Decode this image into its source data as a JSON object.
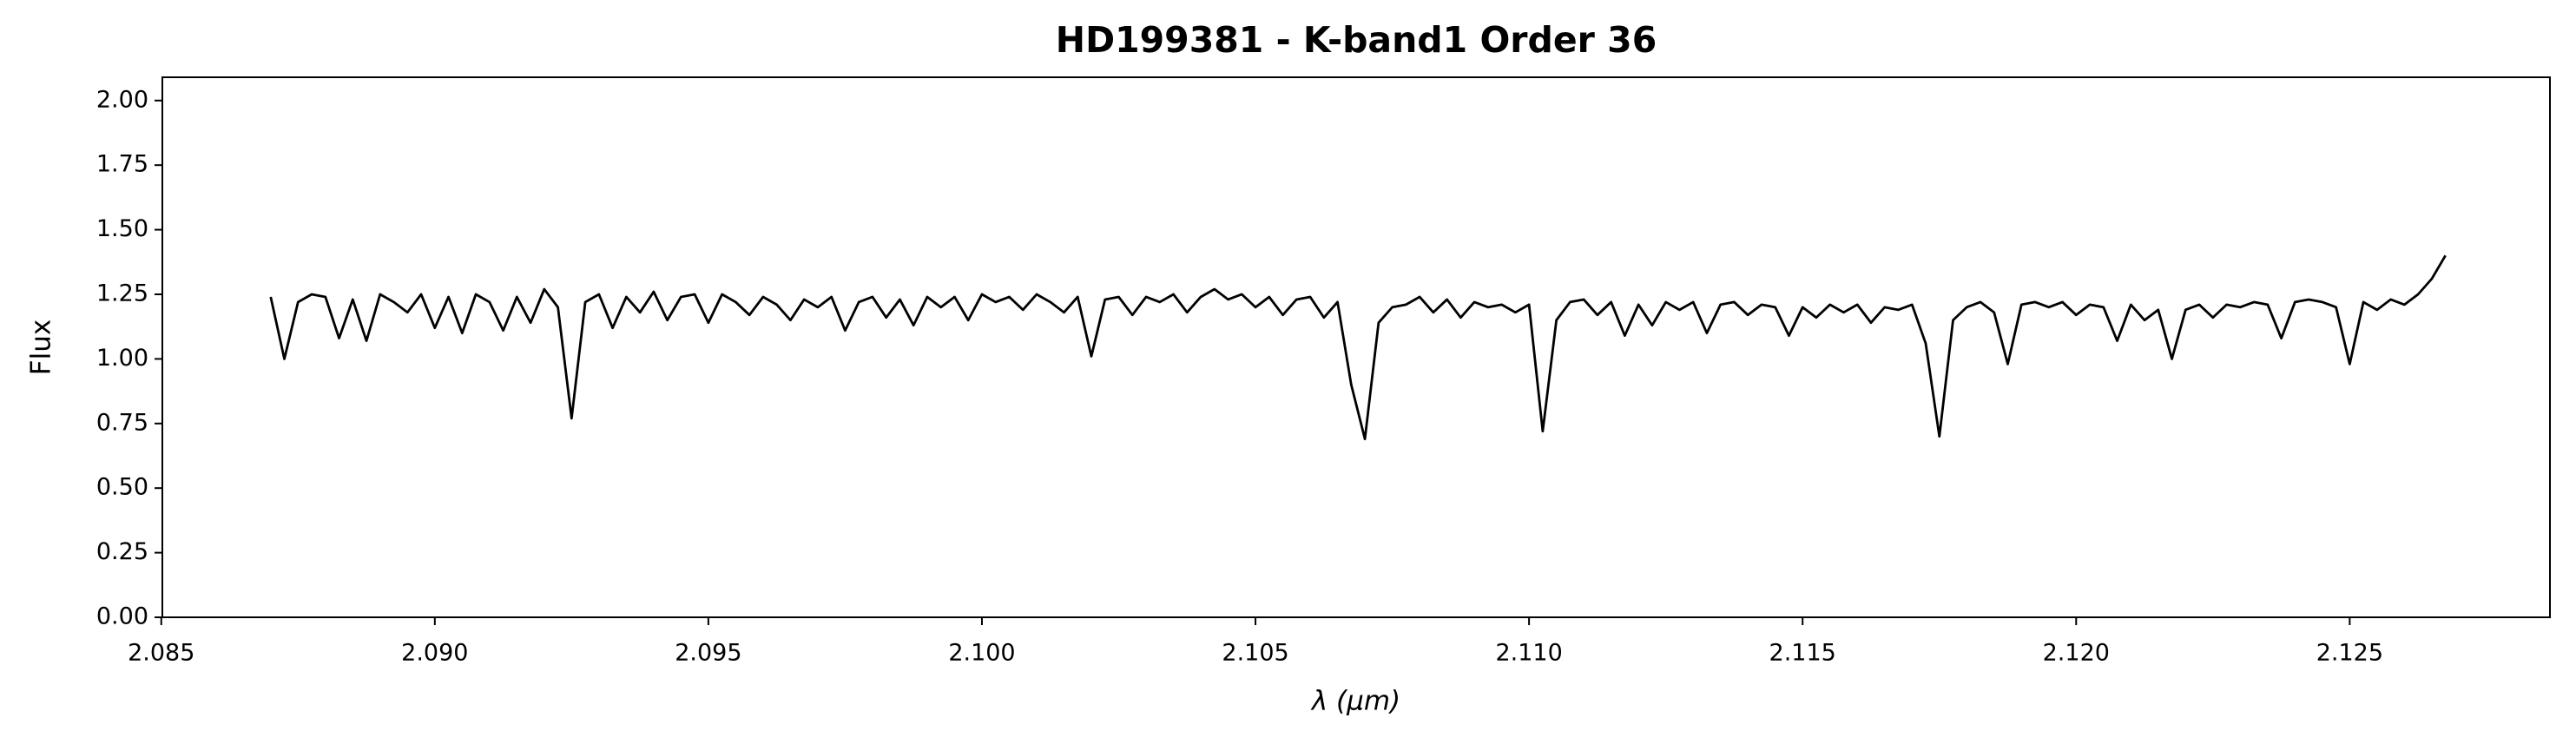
{
  "chart_data": {
    "type": "line",
    "title": "HD199381 - K-band1 Order 36",
    "xlabel": "λ (μm)",
    "ylabel": "Flux",
    "color": "#000000",
    "x": [
      2.087,
      2.08725,
      2.0875,
      2.08775,
      2.088,
      2.08825,
      2.0885,
      2.08875,
      2.089,
      2.08925,
      2.0895,
      2.08975,
      2.09,
      2.09025,
      2.0905,
      2.09075,
      2.091,
      2.09125,
      2.0915,
      2.09175,
      2.092,
      2.09225,
      2.0925,
      2.09275,
      2.093,
      2.09325,
      2.0935,
      2.09375,
      2.094,
      2.09425,
      2.0945,
      2.09475,
      2.095,
      2.09525,
      2.0955,
      2.09575,
      2.096,
      2.09625,
      2.0965,
      2.09675,
      2.097,
      2.09725,
      2.0975,
      2.09775,
      2.098,
      2.09825,
      2.0985,
      2.09875,
      2.099,
      2.09925,
      2.0995,
      2.09975,
      2.1,
      2.10025,
      2.1005,
      2.10075,
      2.101,
      2.10125,
      2.1015,
      2.10175,
      2.102,
      2.10225,
      2.1025,
      2.10275,
      2.103,
      2.10325,
      2.1035,
      2.10375,
      2.104,
      2.10425,
      2.1045,
      2.10475,
      2.105,
      2.10525,
      2.1055,
      2.10575,
      2.106,
      2.10625,
      2.1065,
      2.10675,
      2.107,
      2.10725,
      2.1075,
      2.10775,
      2.108,
      2.10825,
      2.1085,
      2.10875,
      2.109,
      2.10925,
      2.1095,
      2.10975,
      2.11,
      2.11025,
      2.1105,
      2.11075,
      2.111,
      2.11125,
      2.1115,
      2.11175,
      2.112,
      2.11225,
      2.1125,
      2.11275,
      2.113,
      2.11325,
      2.1135,
      2.11375,
      2.114,
      2.11425,
      2.1145,
      2.11475,
      2.115,
      2.11525,
      2.1155,
      2.11575,
      2.116,
      2.11625,
      2.1165,
      2.11675,
      2.117,
      2.11725,
      2.1175,
      2.11775,
      2.118,
      2.11825,
      2.1185,
      2.11875,
      2.119,
      2.11925,
      2.1195,
      2.11975,
      2.12,
      2.12025,
      2.1205,
      2.12075,
      2.121,
      2.12125,
      2.1215,
      2.12175,
      2.122,
      2.12225,
      2.1225,
      2.12275,
      2.123,
      2.12325,
      2.1235,
      2.12375,
      2.124,
      2.12425,
      2.1245,
      2.12475,
      2.125,
      2.12525,
      2.1255,
      2.12575,
      2.126,
      2.12625,
      2.1265,
      2.12675
    ],
    "values": [
      1.24,
      1.0,
      1.22,
      1.25,
      1.24,
      1.08,
      1.23,
      1.07,
      1.25,
      1.22,
      1.18,
      1.25,
      1.12,
      1.24,
      1.1,
      1.25,
      1.22,
      1.11,
      1.24,
      1.14,
      1.27,
      1.2,
      0.77,
      1.22,
      1.25,
      1.12,
      1.24,
      1.18,
      1.26,
      1.15,
      1.24,
      1.25,
      1.14,
      1.25,
      1.22,
      1.17,
      1.24,
      1.21,
      1.15,
      1.23,
      1.2,
      1.24,
      1.11,
      1.22,
      1.24,
      1.16,
      1.23,
      1.13,
      1.24,
      1.2,
      1.24,
      1.15,
      1.25,
      1.22,
      1.24,
      1.19,
      1.25,
      1.22,
      1.18,
      1.24,
      1.01,
      1.23,
      1.24,
      1.17,
      1.24,
      1.22,
      1.25,
      1.18,
      1.24,
      1.27,
      1.23,
      1.25,
      1.2,
      1.24,
      1.17,
      1.23,
      1.24,
      1.16,
      1.22,
      0.9,
      0.69,
      1.14,
      1.2,
      1.21,
      1.24,
      1.18,
      1.23,
      1.16,
      1.22,
      1.2,
      1.21,
      1.18,
      1.21,
      0.72,
      1.15,
      1.22,
      1.23,
      1.17,
      1.22,
      1.09,
      1.21,
      1.13,
      1.22,
      1.19,
      1.22,
      1.1,
      1.21,
      1.22,
      1.17,
      1.21,
      1.2,
      1.09,
      1.2,
      1.16,
      1.21,
      1.18,
      1.21,
      1.14,
      1.2,
      1.19,
      1.21,
      1.06,
      0.7,
      1.15,
      1.2,
      1.22,
      1.18,
      0.98,
      1.21,
      1.22,
      1.2,
      1.22,
      1.17,
      1.21,
      1.2,
      1.07,
      1.21,
      1.15,
      1.19,
      1.0,
      1.19,
      1.21,
      1.16,
      1.21,
      1.2,
      1.22,
      1.21,
      1.08,
      1.22,
      1.23,
      1.22,
      1.2,
      0.98,
      1.22,
      1.19,
      1.23,
      1.21,
      1.25,
      1.31,
      1.4
    ],
    "xlim": [
      2.08502,
      2.12866
    ],
    "ylim": [
      0,
      2.09
    ],
    "xticks": [
      2.085,
      {
        "value": 2.09,
        "label": "2.090"
      },
      2.095,
      {
        "value": 2.1,
        "label": "2.100"
      },
      2.105,
      {
        "value": 2.11,
        "label": "2.110"
      },
      2.115,
      {
        "value": 2.12,
        "label": "2.120"
      },
      2.125
    ],
    "yticks": [
      {
        "value": 0,
        "label": "0.00"
      },
      {
        "value": 0.25,
        "label": "0.25"
      },
      {
        "value": 0.5,
        "label": "0.50"
      },
      {
        "value": 0.75,
        "label": "0.75"
      },
      {
        "value": 1,
        "label": "1.00"
      },
      {
        "value": 1.25,
        "label": "1.25"
      },
      {
        "value": 1.5,
        "label": "1.50"
      },
      {
        "value": 1.75,
        "label": "1.75"
      },
      {
        "value": 2,
        "label": "2.00"
      }
    ]
  }
}
